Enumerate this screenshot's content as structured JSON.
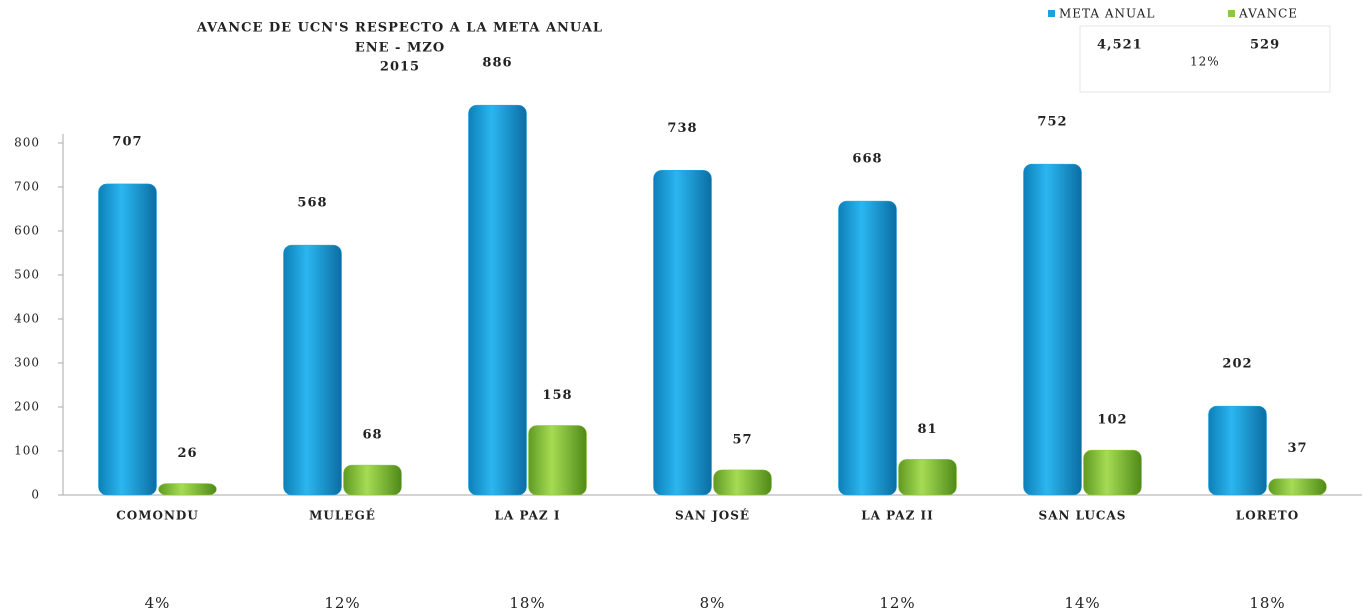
{
  "chart_data": {
    "type": "bar",
    "title": "AVANCE DE UCN'S RESPECTO A LA META ANUAL",
    "subtitle": "ENE - MZO",
    "year": "2015",
    "categories": [
      "COMONDU",
      "MULEGÉ",
      "LA PAZ I",
      "SAN JOSÉ",
      "LA PAZ II",
      "SAN LUCAS",
      "LORETO"
    ],
    "series": [
      {
        "name": "META  ANUAL",
        "color": "#1aa3e0",
        "values": [
          707,
          568,
          886,
          738,
          668,
          752,
          202
        ]
      },
      {
        "name": "AVANCE",
        "color": "#8dc63f",
        "values": [
          26,
          68,
          158,
          57,
          81,
          102,
          37
        ]
      }
    ],
    "percentages": [
      "4%",
      "12%",
      "18%",
      "8%",
      "12%",
      "14%",
      "18%"
    ],
    "summary": {
      "meta_total": "4,521",
      "avance_total": "529",
      "percent": "12%"
    },
    "ylim": [
      0,
      900
    ],
    "yticks": [
      0,
      100,
      200,
      300,
      400,
      500,
      600,
      700,
      800
    ],
    "legend": "top-right"
  }
}
